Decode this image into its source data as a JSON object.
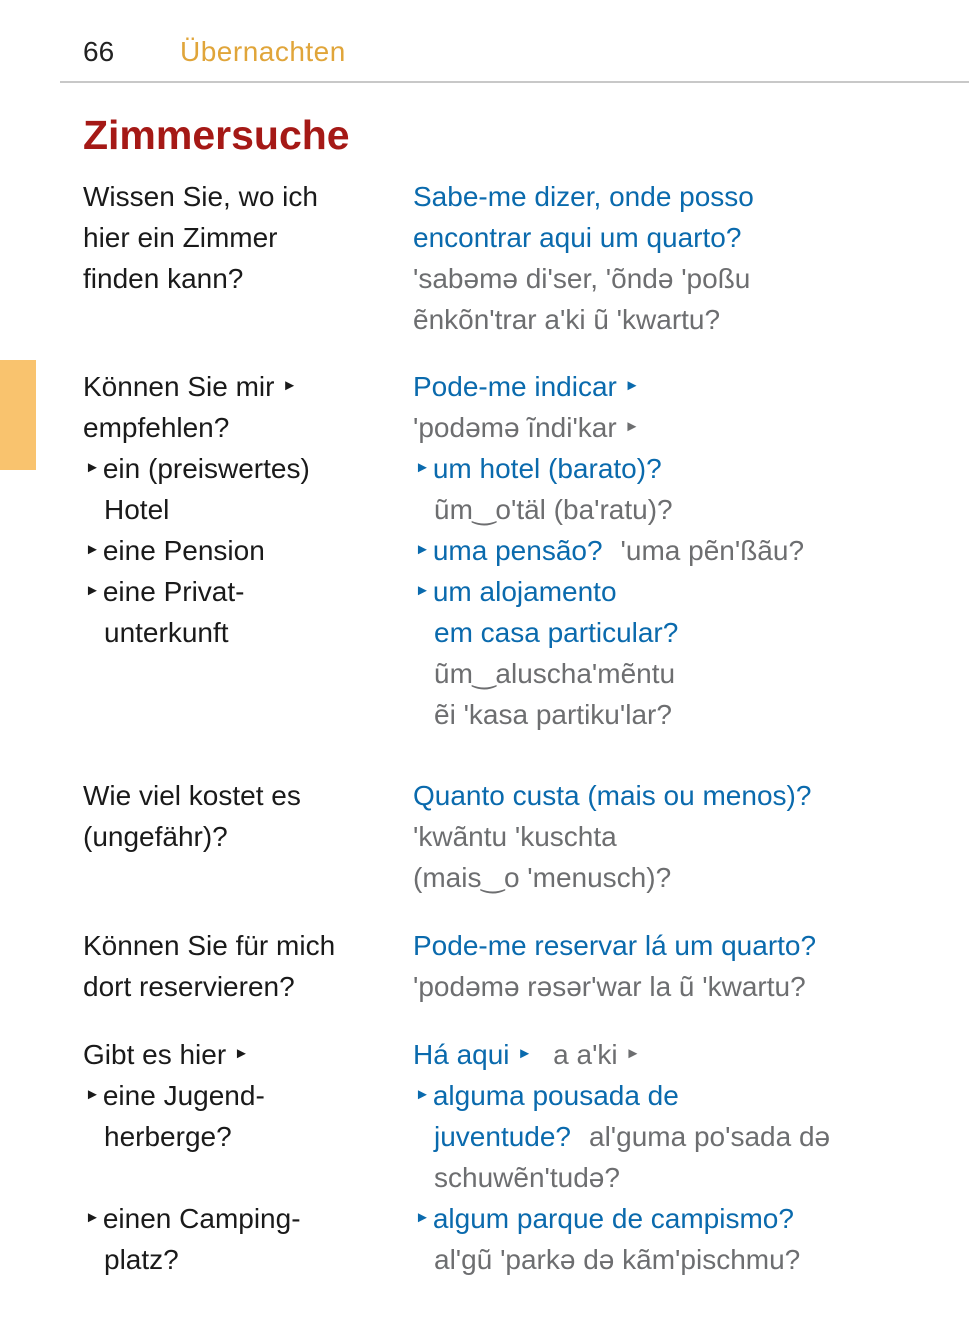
{
  "header": {
    "page_number": "66",
    "chapter": "Übernachten"
  },
  "colors": {
    "title": "#a51916",
    "chapter": "#e0a53a",
    "portuguese": "#0a6aad",
    "pronunciation": "#6d6e70",
    "side_tab": "#f9c36e"
  },
  "section_title": "Zimmersuche",
  "entries": [
    {
      "german": [
        [
          {
            "t": "Wissen Sie, wo ich"
          }
        ],
        [
          {
            "t": "hier ein Zimmer"
          }
        ],
        [
          {
            "t": "finden kann?"
          }
        ]
      ],
      "portuguese": [
        [
          {
            "t": "Sabe-me dizer, onde posso",
            "k": "b"
          }
        ],
        [
          {
            "t": "encontrar aqui um quarto?",
            "k": "b"
          }
        ],
        [
          {
            "t": "'sabəmə di'ser, 'õndə 'poßu",
            "k": "g"
          }
        ],
        [
          {
            "t": "ẽnkõn'trar a'ki ũ 'kwartu?",
            "k": "g"
          }
        ]
      ]
    },
    {
      "german": [
        [
          {
            "t": "Können Sie mir "
          },
          {
            "icon": "triangle-right"
          }
        ],
        [
          {
            "t": "empfehlen?"
          }
        ],
        [
          {
            "icon": "triangle-right"
          },
          {
            "t": "ein (preiswertes)"
          }
        ],
        [
          {
            "t": "Hotel",
            "indent": true
          }
        ],
        [
          {
            "icon": "triangle-right"
          },
          {
            "t": "eine Pension"
          }
        ],
        [
          {
            "icon": "triangle-right"
          },
          {
            "t": "eine Privat-"
          }
        ],
        [
          {
            "t": "unterkunft",
            "indent": true
          }
        ]
      ],
      "portuguese": [
        [
          {
            "t": "Pode-me indicar ",
            "k": "b"
          },
          {
            "icon": "triangle-right",
            "k": "b"
          }
        ],
        [
          {
            "t": "'podəmə ĩndi'kar ",
            "k": "g"
          },
          {
            "icon": "triangle-right",
            "k": "g"
          }
        ],
        [
          {
            "icon": "triangle-right",
            "k": "b"
          },
          {
            "t": "um hotel (barato)?",
            "k": "b"
          }
        ],
        [
          {
            "t": "ũm‿o'täl (ba'ratu)?",
            "k": "g",
            "indent": true
          }
        ],
        [
          {
            "icon": "triangle-right",
            "k": "b"
          },
          {
            "t": "uma pensão?",
            "k": "b"
          },
          {
            "gap": true
          },
          {
            "t": "'uma pẽn'ßãu?",
            "k": "g"
          }
        ],
        [
          {
            "icon": "triangle-right",
            "k": "b"
          },
          {
            "t": "um alojamento",
            "k": "b"
          }
        ],
        [
          {
            "t": "em casa particular?",
            "k": "b",
            "indent": true
          }
        ],
        [
          {
            "t": "ũm‿aluscha'mẽntu",
            "k": "g",
            "indent": true
          }
        ],
        [
          {
            "t": "ẽi 'kasa partiku'lar?",
            "k": "g",
            "indent": true
          }
        ]
      ]
    },
    {
      "german": [
        [
          {
            "t": "Wie viel kostet es"
          }
        ],
        [
          {
            "t": "(ungefähr)?"
          }
        ]
      ],
      "portuguese": [
        [
          {
            "t": "Quanto custa (mais ou menos)?",
            "k": "b"
          }
        ],
        [
          {
            "t": "'kwãntu 'kuschta",
            "k": "g"
          }
        ],
        [
          {
            "t": "(mais‿o 'menusch)?",
            "k": "g"
          }
        ]
      ]
    },
    {
      "german": [
        [
          {
            "t": "Können Sie für mich"
          }
        ],
        [
          {
            "t": "dort reservieren?"
          }
        ]
      ],
      "portuguese": [
        [
          {
            "t": "Pode-me reservar lá um quarto?",
            "k": "b"
          }
        ],
        [
          {
            "t": "'podəmə rəsər'war la ũ 'kwartu?",
            "k": "g"
          }
        ]
      ]
    },
    {
      "german": [
        [
          {
            "t": "Gibt es hier "
          },
          {
            "icon": "triangle-right"
          }
        ],
        [
          {
            "icon": "triangle-right"
          },
          {
            "t": "eine Jugend-"
          }
        ],
        [
          {
            "t": "herberge?",
            "indent": true
          }
        ],
        [],
        [
          {
            "icon": "triangle-right"
          },
          {
            "t": "einen Camping-"
          }
        ],
        [
          {
            "t": "platz?",
            "indent": true
          }
        ]
      ],
      "portuguese": [
        [
          {
            "t": "Há aqui ",
            "k": "b"
          },
          {
            "icon": "triangle-right",
            "k": "b"
          },
          {
            "gap": true
          },
          {
            "t": "a a'ki ",
            "k": "g"
          },
          {
            "icon": "triangle-right",
            "k": "g"
          }
        ],
        [
          {
            "icon": "triangle-right",
            "k": "b"
          },
          {
            "t": "alguma pousada de",
            "k": "b"
          }
        ],
        [
          {
            "t": "juventude?",
            "k": "b",
            "indent": true
          },
          {
            "gap": true
          },
          {
            "t": "al'guma po'sada də",
            "k": "g"
          }
        ],
        [
          {
            "t": "schuwẽn'tudə?",
            "k": "g",
            "indent": true
          }
        ],
        [
          {
            "icon": "triangle-right",
            "k": "b"
          },
          {
            "t": "algum parque de campismo?",
            "k": "b"
          }
        ],
        [
          {
            "t": "al'gũ 'parkə də kãm'pischmu?",
            "k": "g",
            "indent": true
          }
        ]
      ]
    }
  ]
}
